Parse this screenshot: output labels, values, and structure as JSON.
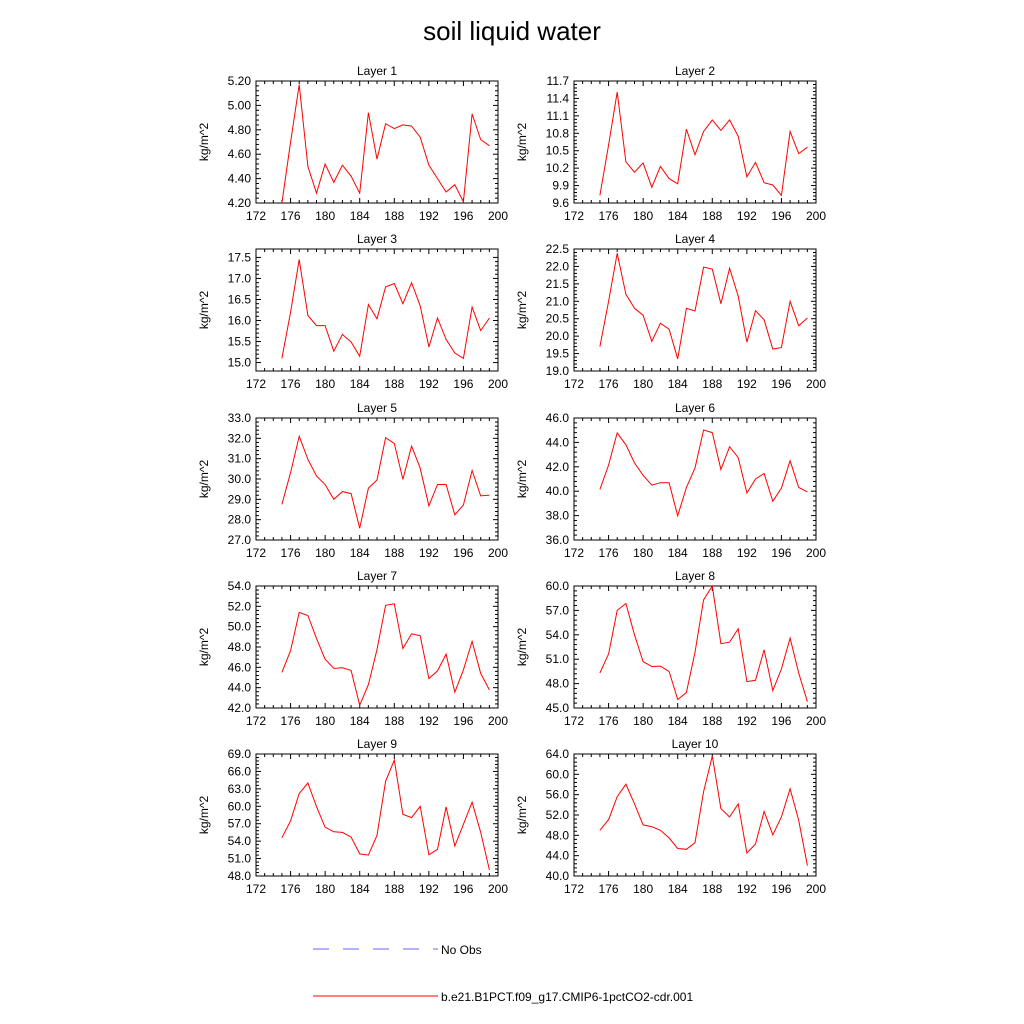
{
  "title": "soil liquid water",
  "legend": {
    "placement": "bottom",
    "entries": [
      {
        "label": "No Obs",
        "color": "#6666ff",
        "style": "dashed"
      },
      {
        "label": "b.e21.B1PCT.f09_g17.CMIP6-1pctCO2-cdr.001",
        "color": "#ff0000",
        "style": "solid"
      }
    ]
  },
  "chart_data": [
    {
      "type": "line",
      "title": "Layer 1",
      "xlabel": "",
      "ylabel": "kg/m^2",
      "xlim": [
        172,
        200
      ],
      "ylim": [
        4.2,
        5.2
      ],
      "xticks": [
        "172",
        "176",
        "180",
        "184",
        "188",
        "192",
        "196",
        "200"
      ],
      "yticks": [
        "4.20",
        "4.40",
        "4.60",
        "4.80",
        "5.00",
        "5.20"
      ],
      "x": [
        175,
        176,
        177,
        178,
        179,
        180,
        181,
        182,
        183,
        184,
        185,
        186,
        187,
        188,
        189,
        190,
        191,
        192,
        193,
        194,
        195,
        196,
        197,
        198,
        199
      ],
      "series": [
        {
          "name": "b.e21.B1PCT.f09_g17.CMIP6-1pctCO2-cdr.001",
          "color": "#ff0000",
          "values": [
            4.2,
            4.7,
            5.17,
            4.5,
            4.28,
            4.52,
            4.37,
            4.51,
            4.42,
            4.28,
            4.94,
            4.56,
            4.85,
            4.81,
            4.84,
            4.83,
            4.74,
            4.51,
            4.4,
            4.29,
            4.35,
            4.21,
            4.93,
            4.72,
            4.67
          ]
        }
      ]
    },
    {
      "type": "line",
      "title": "Layer 2",
      "xlabel": "",
      "ylabel": "kg/m^2",
      "xlim": [
        172,
        200
      ],
      "ylim": [
        9.6,
        11.7
      ],
      "xticks": [
        "172",
        "176",
        "180",
        "184",
        "188",
        "192",
        "196",
        "200"
      ],
      "yticks": [
        "9.6",
        "9.9",
        "10.2",
        "10.5",
        "10.8",
        "11.1",
        "11.4",
        "11.7"
      ],
      "x": [
        175,
        176,
        177,
        178,
        179,
        180,
        181,
        182,
        183,
        184,
        185,
        186,
        187,
        188,
        189,
        190,
        191,
        192,
        193,
        194,
        195,
        196,
        197,
        198,
        199
      ],
      "series": [
        {
          "name": "b.e21.B1PCT.f09_g17.CMIP6-1pctCO2-cdr.001",
          "color": "#ff0000",
          "values": [
            9.73,
            10.6,
            11.51,
            10.31,
            10.13,
            10.29,
            9.87,
            10.23,
            10.02,
            9.93,
            10.87,
            10.43,
            10.83,
            11.03,
            10.85,
            11.03,
            10.75,
            10.05,
            10.3,
            9.95,
            9.91,
            9.73,
            10.83,
            10.45,
            10.56
          ]
        }
      ]
    },
    {
      "type": "line",
      "title": "Layer 3",
      "xlabel": "",
      "ylabel": "kg/m^2",
      "xlim": [
        172,
        200
      ],
      "ylim": [
        14.8,
        17.7
      ],
      "xticks": [
        "172",
        "176",
        "180",
        "184",
        "188",
        "192",
        "196",
        "200"
      ],
      "yticks": [
        "15.0",
        "15.5",
        "16.0",
        "16.5",
        "17.0",
        "17.5"
      ],
      "x": [
        175,
        176,
        177,
        178,
        179,
        180,
        181,
        182,
        183,
        184,
        185,
        186,
        187,
        188,
        189,
        190,
        191,
        192,
        193,
        194,
        195,
        196,
        197,
        198,
        199
      ],
      "series": [
        {
          "name": "b.e21.B1PCT.f09_g17.CMIP6-1pctCO2-cdr.001",
          "color": "#ff0000",
          "values": [
            15.1,
            16.2,
            17.45,
            16.12,
            15.88,
            15.88,
            15.27,
            15.67,
            15.49,
            15.15,
            16.38,
            16.04,
            16.8,
            16.88,
            16.4,
            16.9,
            16.35,
            15.37,
            16.06,
            15.55,
            15.23,
            15.1,
            16.32,
            15.76,
            16.06
          ]
        }
      ]
    },
    {
      "type": "line",
      "title": "Layer 4",
      "xlabel": "",
      "ylabel": "kg/m^2",
      "xlim": [
        172,
        200
      ],
      "ylim": [
        19.0,
        22.5
      ],
      "xticks": [
        "172",
        "176",
        "180",
        "184",
        "188",
        "192",
        "196",
        "200"
      ],
      "yticks": [
        "19.0",
        "19.5",
        "20.0",
        "20.5",
        "21.0",
        "21.5",
        "22.0",
        "22.5"
      ],
      "x": [
        175,
        176,
        177,
        178,
        179,
        180,
        181,
        182,
        183,
        184,
        185,
        186,
        187,
        188,
        189,
        190,
        191,
        192,
        193,
        194,
        195,
        196,
        197,
        198,
        199
      ],
      "series": [
        {
          "name": "b.e21.B1PCT.f09_g17.CMIP6-1pctCO2-cdr.001",
          "color": "#ff0000",
          "values": [
            19.7,
            21.0,
            22.38,
            21.2,
            20.8,
            20.6,
            19.85,
            20.37,
            20.2,
            19.35,
            20.8,
            20.72,
            21.98,
            21.92,
            20.93,
            21.95,
            21.15,
            19.83,
            20.73,
            20.47,
            19.63,
            19.67,
            21.0,
            20.3,
            20.52
          ]
        }
      ]
    },
    {
      "type": "line",
      "title": "Layer 5",
      "xlabel": "",
      "ylabel": "kg/m^2",
      "xlim": [
        172,
        200
      ],
      "ylim": [
        27.0,
        33.0
      ],
      "xticks": [
        "172",
        "176",
        "180",
        "184",
        "188",
        "192",
        "196",
        "200"
      ],
      "yticks": [
        "27.0",
        "28.0",
        "29.0",
        "30.0",
        "31.0",
        "32.0",
        "33.0"
      ],
      "x": [
        175,
        176,
        177,
        178,
        179,
        180,
        181,
        182,
        183,
        184,
        185,
        186,
        187,
        188,
        189,
        190,
        191,
        192,
        193,
        194,
        195,
        196,
        197,
        198,
        199
      ],
      "series": [
        {
          "name": "b.e21.B1PCT.f09_g17.CMIP6-1pctCO2-cdr.001",
          "color": "#ff0000",
          "values": [
            28.75,
            30.32,
            32.1,
            30.97,
            30.15,
            29.73,
            29.0,
            29.38,
            29.28,
            27.58,
            29.55,
            29.95,
            32.03,
            31.75,
            29.98,
            31.62,
            30.53,
            28.68,
            29.73,
            29.73,
            28.24,
            28.72,
            30.42,
            29.17,
            29.21
          ]
        }
      ]
    },
    {
      "type": "line",
      "title": "Layer 6",
      "xlabel": "",
      "ylabel": "kg/m^2",
      "xlim": [
        172,
        200
      ],
      "ylim": [
        36.0,
        46.0
      ],
      "xticks": [
        "172",
        "176",
        "180",
        "184",
        "188",
        "192",
        "196",
        "200"
      ],
      "yticks": [
        "36.0",
        "38.0",
        "40.0",
        "42.0",
        "44.0",
        "46.0"
      ],
      "x": [
        175,
        176,
        177,
        178,
        179,
        180,
        181,
        182,
        183,
        184,
        185,
        186,
        187,
        188,
        189,
        190,
        191,
        192,
        193,
        194,
        195,
        196,
        197,
        198,
        199
      ],
      "series": [
        {
          "name": "b.e21.B1PCT.f09_g17.CMIP6-1pctCO2-cdr.001",
          "color": "#ff0000",
          "values": [
            40.15,
            42.15,
            44.78,
            43.8,
            42.32,
            41.3,
            40.5,
            40.7,
            40.7,
            37.98,
            40.3,
            41.9,
            45.02,
            44.8,
            41.78,
            43.65,
            42.75,
            39.85,
            41.0,
            41.45,
            39.18,
            40.25,
            42.5,
            40.3,
            39.95
          ]
        }
      ]
    },
    {
      "type": "line",
      "title": "Layer 7",
      "xlabel": "",
      "ylabel": "kg/m^2",
      "xlim": [
        172,
        200
      ],
      "ylim": [
        42.0,
        54.0
      ],
      "xticks": [
        "172",
        "176",
        "180",
        "184",
        "188",
        "192",
        "196",
        "200"
      ],
      "yticks": [
        "42.0",
        "44.0",
        "46.0",
        "48.0",
        "50.0",
        "52.0",
        "54.0"
      ],
      "x": [
        175,
        176,
        177,
        178,
        179,
        180,
        181,
        182,
        183,
        184,
        185,
        186,
        187,
        188,
        189,
        190,
        191,
        192,
        193,
        194,
        195,
        196,
        197,
        198,
        199
      ],
      "series": [
        {
          "name": "b.e21.B1PCT.f09_g17.CMIP6-1pctCO2-cdr.001",
          "color": "#ff0000",
          "values": [
            45.5,
            47.65,
            51.4,
            51.1,
            48.85,
            46.8,
            45.9,
            45.95,
            45.7,
            42.27,
            44.3,
            47.75,
            52.1,
            52.25,
            47.85,
            49.3,
            49.1,
            44.9,
            45.65,
            47.3,
            43.55,
            45.75,
            48.55,
            45.4,
            43.78
          ]
        }
      ]
    },
    {
      "type": "line",
      "title": "Layer 8",
      "xlabel": "",
      "ylabel": "kg/m^2",
      "xlim": [
        172,
        200
      ],
      "ylim": [
        45.0,
        60.0
      ],
      "xticks": [
        "172",
        "176",
        "180",
        "184",
        "188",
        "192",
        "196",
        "200"
      ],
      "yticks": [
        "45.0",
        "48.0",
        "51.0",
        "54.0",
        "57.0",
        "60.0"
      ],
      "x": [
        175,
        176,
        177,
        178,
        179,
        180,
        181,
        182,
        183,
        184,
        185,
        186,
        187,
        188,
        189,
        190,
        191,
        192,
        193,
        194,
        195,
        196,
        197,
        198,
        199
      ],
      "series": [
        {
          "name": "b.e21.B1PCT.f09_g17.CMIP6-1pctCO2-cdr.001",
          "color": "#ff0000",
          "values": [
            49.3,
            51.65,
            57.0,
            57.85,
            54.0,
            50.7,
            50.1,
            50.15,
            49.5,
            46.05,
            46.9,
            51.85,
            58.3,
            60.0,
            52.9,
            53.1,
            54.75,
            48.25,
            48.4,
            52.15,
            47.15,
            49.8,
            53.6,
            49.3,
            45.78
          ]
        }
      ]
    },
    {
      "type": "line",
      "title": "Layer 9",
      "xlabel": "",
      "ylabel": "kg/m^2",
      "xlim": [
        172,
        200
      ],
      "ylim": [
        48.0,
        69.0
      ],
      "xticks": [
        "172",
        "176",
        "180",
        "184",
        "188",
        "192",
        "196",
        "200"
      ],
      "yticks": [
        "48.0",
        "51.0",
        "54.0",
        "57.0",
        "60.0",
        "63.0",
        "66.0",
        "69.0"
      ],
      "x": [
        175,
        176,
        177,
        178,
        179,
        180,
        181,
        182,
        183,
        184,
        185,
        186,
        187,
        188,
        189,
        190,
        191,
        192,
        193,
        194,
        195,
        196,
        197,
        198,
        199
      ],
      "series": [
        {
          "name": "b.e21.B1PCT.f09_g17.CMIP6-1pctCO2-cdr.001",
          "color": "#ff0000",
          "values": [
            54.6,
            57.5,
            62.2,
            64.0,
            59.95,
            56.4,
            55.6,
            55.5,
            54.7,
            51.8,
            51.6,
            55.0,
            64.3,
            67.95,
            58.6,
            58.05,
            60.0,
            51.65,
            52.6,
            59.9,
            53.15,
            56.9,
            60.7,
            55.5,
            49.05
          ]
        }
      ]
    },
    {
      "type": "line",
      "title": "Layer 10",
      "xlabel": "",
      "ylabel": "kg/m^2",
      "xlim": [
        172,
        200
      ],
      "ylim": [
        40.0,
        64.0
      ],
      "xticks": [
        "172",
        "176",
        "180",
        "184",
        "188",
        "192",
        "196",
        "200"
      ],
      "yticks": [
        "40.0",
        "44.0",
        "48.0",
        "52.0",
        "56.0",
        "60.0",
        "64.0"
      ],
      "x": [
        175,
        176,
        177,
        178,
        179,
        180,
        181,
        182,
        183,
        184,
        185,
        186,
        187,
        188,
        189,
        190,
        191,
        192,
        193,
        194,
        195,
        196,
        197,
        198,
        199
      ],
      "series": [
        {
          "name": "b.e21.B1PCT.f09_g17.CMIP6-1pctCO2-cdr.001",
          "color": "#ff0000",
          "values": [
            49.0,
            51.1,
            55.6,
            58.05,
            54.2,
            50.05,
            49.7,
            49.0,
            47.5,
            45.4,
            45.25,
            46.55,
            56.6,
            63.6,
            53.25,
            51.6,
            54.2,
            44.5,
            46.3,
            52.7,
            48.1,
            51.6,
            57.15,
            50.95,
            42.05
          ]
        }
      ]
    }
  ]
}
